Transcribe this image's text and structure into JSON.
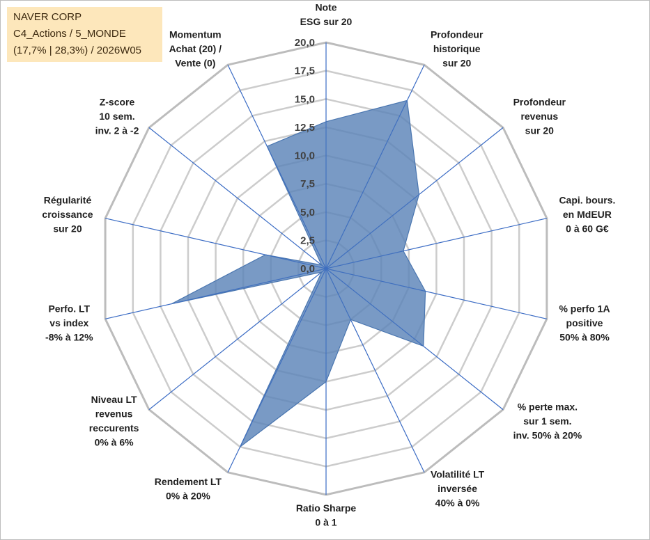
{
  "header": {
    "company": "NAVER CORP",
    "portfolio": "C4_Actions / 5_MONDE",
    "stats": "(17,7% | 28,3%) / 2026W05"
  },
  "chart_data": {
    "type": "radar",
    "title": "",
    "rmin": 0,
    "rmax": 20,
    "ticks": [
      0,
      2.5,
      5,
      7.5,
      10,
      12.5,
      15,
      17.5,
      20
    ],
    "tick_labels": [
      "0,0",
      "2,5",
      "5,0",
      "7,5",
      "10,0",
      "12,5",
      "15,0",
      "17,5",
      "20,0"
    ],
    "axes": [
      {
        "label": [
          "Note",
          "ESG sur 20"
        ],
        "value": 13
      },
      {
        "label": [
          "Profondeur",
          "historique",
          "sur 20"
        ],
        "value": 16.5
      },
      {
        "label": [
          "Profondeur",
          "revenus",
          "sur 20"
        ],
        "value": 10.5
      },
      {
        "label": [
          "Capi. bours.",
          "en MdEUR",
          "0 à 60 G€"
        ],
        "value": 7
      },
      {
        "label": [
          "% perfo 1A",
          "positive",
          "50% à 80%"
        ],
        "value": 9
      },
      {
        "label": [
          "% perte max.",
          "sur 1 sem.",
          "inv. 50% à 20%"
        ],
        "value": 11
      },
      {
        "label": [
          "Volatilité LT",
          "inversée",
          "40% à 0%"
        ],
        "value": 5
      },
      {
        "label": [
          "Ratio Sharpe",
          "0 à 1"
        ],
        "value": 10
      },
      {
        "label": [
          "Rendement LT",
          "0% à 20%"
        ],
        "value": 17.5
      },
      {
        "label": [
          "Niveau LT",
          "revenus",
          "reccurents",
          "0% à 6%"
        ],
        "value": 0.5
      },
      {
        "label": [
          "Perfo. LT",
          "vs index",
          "-8% à 12%"
        ],
        "value": 14
      },
      {
        "label": [
          "Régularité",
          "croissance",
          "sur 20"
        ],
        "value": 5.5
      },
      {
        "label": [
          "Z-score",
          "10 sem.",
          "inv. 2 à -2"
        ],
        "value": 0.5
      },
      {
        "label": [
          "Momentum",
          "Achat (20) /",
          "Vente (0)"
        ],
        "value": 12
      }
    ],
    "series": [
      {
        "name": "NAVER CORP",
        "color": "#5b84b8"
      }
    ],
    "grid": true,
    "legend": "none"
  }
}
